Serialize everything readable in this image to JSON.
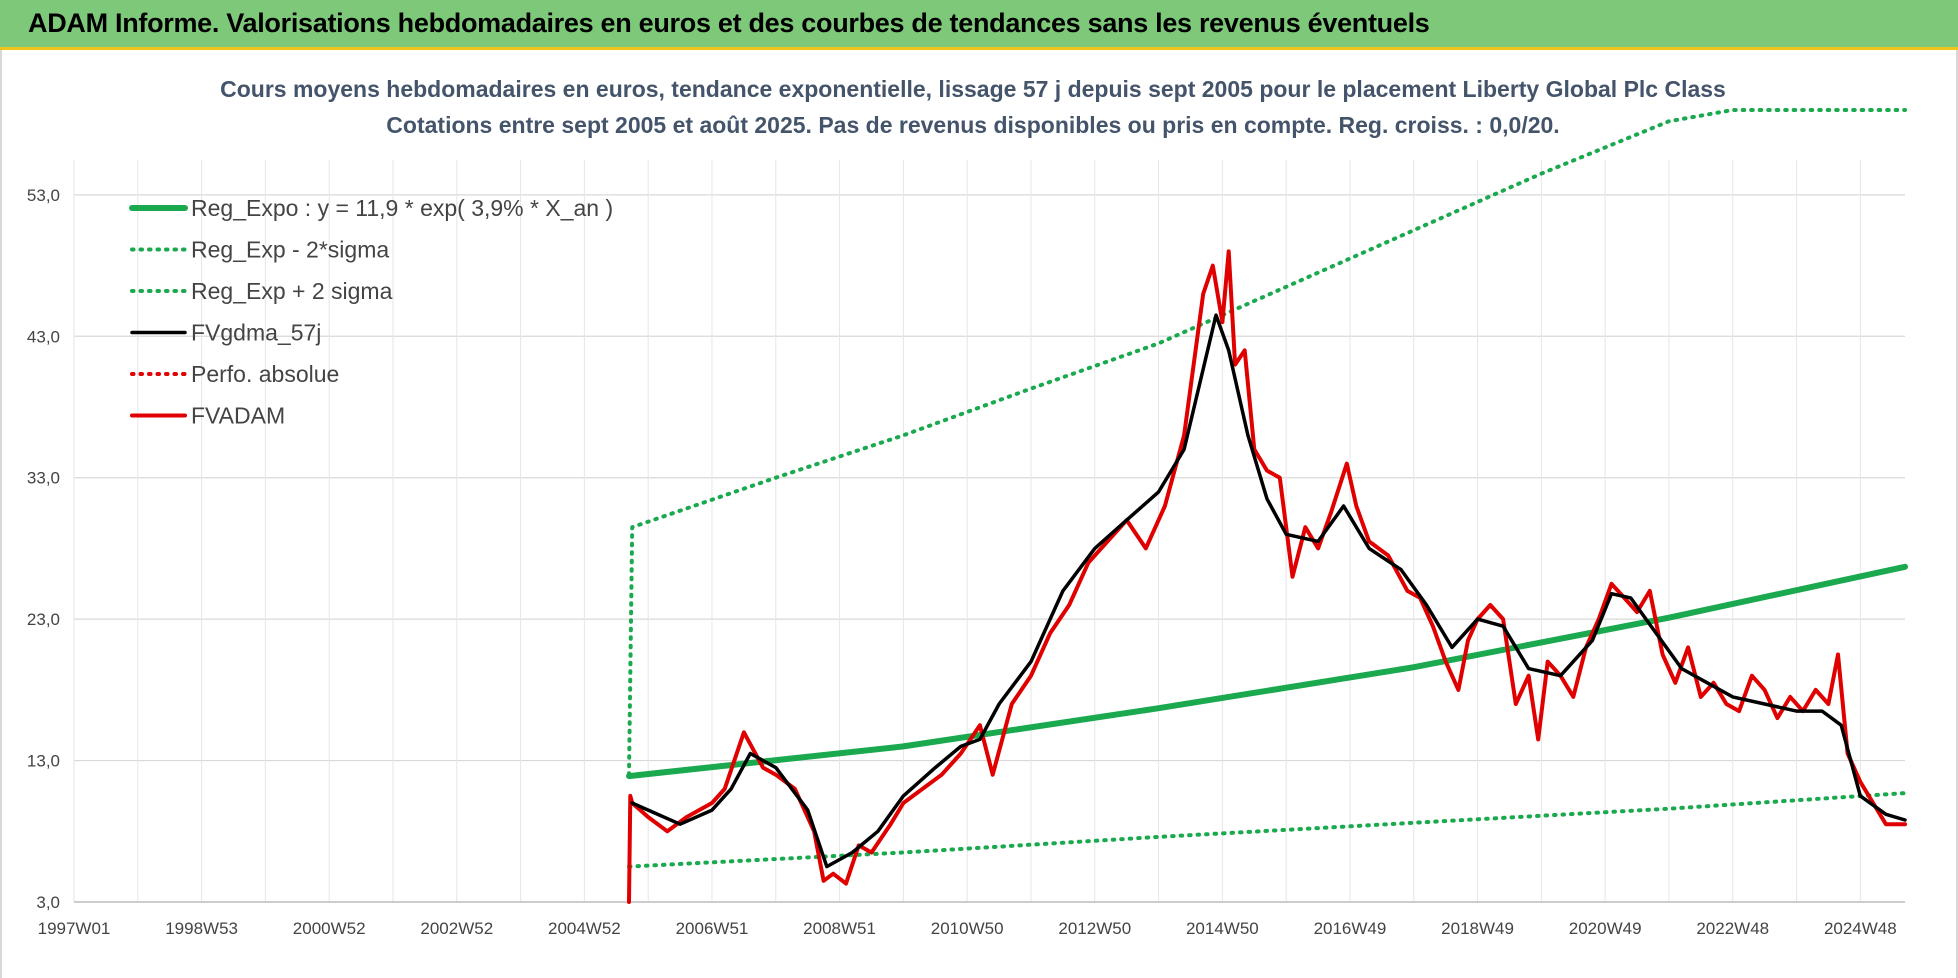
{
  "header": {
    "title": "ADAM Informe. Valorisations hebdomadaires en euros et des courbes de tendances sans les revenus éventuels"
  },
  "chart_data": {
    "type": "line",
    "title": "Cours moyens hebdomadaires en euros, tendance exponentielle, lissage 57 j depuis sept 2005 pour le placement Liberty Global Plc Class",
    "subtitle": "Cotations entre sept 2005 et août 2025. Pas de revenus disponibles ou pris en compte. Reg. croiss. : 0,0/20.",
    "xlabel": "",
    "ylabel": "",
    "xlim": [
      1997.0,
      2025.7
    ],
    "ylim": [
      3.0,
      59.0
    ],
    "yticks": [
      3.0,
      13.0,
      23.0,
      33.0,
      43.0,
      53.0
    ],
    "ytick_labels": [
      "3,0",
      "13,0",
      "23,0",
      "33,0",
      "43,0",
      "53,0"
    ],
    "xtick_positions": [
      1997.0,
      1999.0,
      2001.0,
      2003.0,
      2005.0,
      2007.0,
      2009.0,
      2011.0,
      2013.0,
      2015.0,
      2017.0,
      2019.0,
      2021.0,
      2023.0,
      2025.0
    ],
    "xtick_labels": [
      "1997W01",
      "1998W53",
      "2000W52",
      "2002W52",
      "2004W52",
      "2006W51",
      "2008W51",
      "2010W50",
      "2012W50",
      "2014W50",
      "2016W49",
      "2018W49",
      "2020W49",
      "2022W48",
      "2024W48"
    ],
    "grid": true,
    "legend_position": "top-left",
    "series": [
      {
        "name": "Reg_Expo : y = 11,9 * exp( 3,9% *  X_an )",
        "color": "#1aa94e",
        "style": "solid-thick",
        "x": [
          2005.7,
          2010.0,
          2014.0,
          2018.0,
          2022.0,
          2025.7
        ],
        "values": [
          11.9,
          14.0,
          16.7,
          19.6,
          23.1,
          26.7
        ]
      },
      {
        "name": "Reg_Exp - 2*sigma",
        "color": "#1aa94e",
        "style": "dotted",
        "x": [
          2005.7,
          2010.0,
          2014.0,
          2018.0,
          2022.0,
          2025.7
        ],
        "values": [
          5.5,
          6.5,
          7.6,
          8.6,
          9.6,
          10.7
        ]
      },
      {
        "name": "Reg_Exp + 2 sigma",
        "color": "#1aa94e",
        "style": "dotted",
        "x": [
          2005.7,
          2005.75,
          2008.0,
          2010.0,
          2012.0,
          2014.0,
          2016.0,
          2018.0,
          2020.0,
          2022.0,
          2023.0,
          2025.7
        ],
        "values": [
          12.0,
          29.5,
          33.0,
          36.0,
          39.3,
          42.5,
          46.5,
          50.5,
          54.5,
          58.2,
          59.0,
          59.0
        ]
      },
      {
        "name": "FVgdma_57j",
        "color": "#000000",
        "style": "solid",
        "x": [
          2005.75,
          2006.0,
          2006.5,
          2007.0,
          2007.3,
          2007.6,
          2008.0,
          2008.5,
          2008.8,
          2009.2,
          2009.6,
          2010.0,
          2010.5,
          2010.9,
          2011.2,
          2011.5,
          2012.0,
          2012.5,
          2013.0,
          2013.5,
          2014.0,
          2014.4,
          2014.9,
          2015.1,
          2015.4,
          2015.7,
          2016.0,
          2016.5,
          2016.9,
          2017.3,
          2017.8,
          2018.2,
          2018.6,
          2019.0,
          2019.4,
          2019.8,
          2020.3,
          2020.8,
          2021.1,
          2021.4,
          2021.8,
          2022.2,
          2022.6,
          2023.0,
          2023.5,
          2024.0,
          2024.4,
          2024.7,
          2025.0,
          2025.4,
          2025.7
        ],
        "values": [
          10.0,
          9.5,
          8.5,
          9.5,
          11.0,
          13.5,
          12.5,
          9.5,
          5.5,
          6.5,
          8.0,
          10.5,
          12.5,
          14.0,
          14.5,
          17.0,
          20.0,
          25.0,
          28.0,
          30.0,
          32.0,
          35.0,
          44.5,
          42.0,
          36.0,
          31.5,
          29.0,
          28.5,
          31.0,
          28.0,
          26.5,
          24.0,
          21.0,
          23.0,
          22.5,
          19.5,
          19.0,
          21.5,
          24.8,
          24.5,
          22.0,
          19.5,
          18.5,
          17.5,
          17.0,
          16.5,
          16.5,
          15.5,
          10.5,
          9.2,
          8.8
        ]
      },
      {
        "name": "Perfo. absolue",
        "color": "#e00000",
        "style": "dotted",
        "x": [],
        "values": []
      },
      {
        "name": "FVADAM",
        "color": "#e00000",
        "style": "solid-thick",
        "x": [
          2005.7,
          2005.72,
          2005.75,
          2006.0,
          2006.3,
          2006.6,
          2007.0,
          2007.2,
          2007.35,
          2007.5,
          2007.8,
          2008.0,
          2008.3,
          2008.6,
          2008.75,
          2008.9,
          2009.1,
          2009.3,
          2009.5,
          2009.8,
          2010.0,
          2010.3,
          2010.6,
          2010.9,
          2011.05,
          2011.2,
          2011.4,
          2011.7,
          2012.0,
          2012.3,
          2012.6,
          2012.9,
          2013.2,
          2013.5,
          2013.8,
          2014.1,
          2014.4,
          2014.7,
          2014.85,
          2015.0,
          2015.1,
          2015.2,
          2015.35,
          2015.5,
          2015.7,
          2015.9,
          2016.1,
          2016.3,
          2016.5,
          2016.7,
          2016.95,
          2017.1,
          2017.3,
          2017.6,
          2017.9,
          2018.1,
          2018.3,
          2018.5,
          2018.7,
          2018.85,
          2019.0,
          2019.2,
          2019.4,
          2019.6,
          2019.8,
          2019.95,
          2020.1,
          2020.3,
          2020.5,
          2020.7,
          2020.9,
          2021.1,
          2021.3,
          2021.5,
          2021.7,
          2021.9,
          2022.1,
          2022.3,
          2022.5,
          2022.7,
          2022.9,
          2023.1,
          2023.3,
          2023.5,
          2023.7,
          2023.9,
          2024.1,
          2024.3,
          2024.5,
          2024.65,
          2024.8,
          2025.0,
          2025.2,
          2025.4,
          2025.7
        ],
        "values": [
          3.0,
          10.5,
          10.0,
          9.0,
          8.0,
          9.0,
          10.0,
          11.0,
          13.0,
          15.0,
          12.5,
          12.0,
          11.0,
          8.0,
          4.5,
          5.0,
          4.3,
          7.0,
          6.5,
          8.5,
          10.0,
          11.0,
          12.0,
          13.5,
          14.5,
          15.5,
          12.0,
          17.0,
          19.0,
          22.0,
          24.0,
          27.0,
          28.5,
          30.0,
          28.0,
          31.0,
          36.0,
          46.0,
          48.0,
          44.0,
          49.0,
          41.0,
          42.0,
          35.0,
          33.5,
          33.0,
          26.0,
          29.5,
          28.0,
          30.5,
          34.0,
          31.0,
          28.5,
          27.5,
          25.0,
          24.5,
          22.5,
          20.0,
          18.0,
          21.5,
          23.0,
          24.0,
          23.0,
          17.0,
          19.0,
          14.5,
          20.0,
          19.0,
          17.5,
          21.0,
          23.0,
          25.5,
          24.5,
          23.5,
          25.0,
          20.5,
          18.5,
          21.0,
          17.5,
          18.5,
          17.0,
          16.5,
          19.0,
          18.0,
          16.0,
          17.5,
          16.5,
          18.0,
          17.0,
          20.5,
          13.5,
          11.5,
          10.0,
          8.5,
          8.5
        ]
      }
    ]
  }
}
